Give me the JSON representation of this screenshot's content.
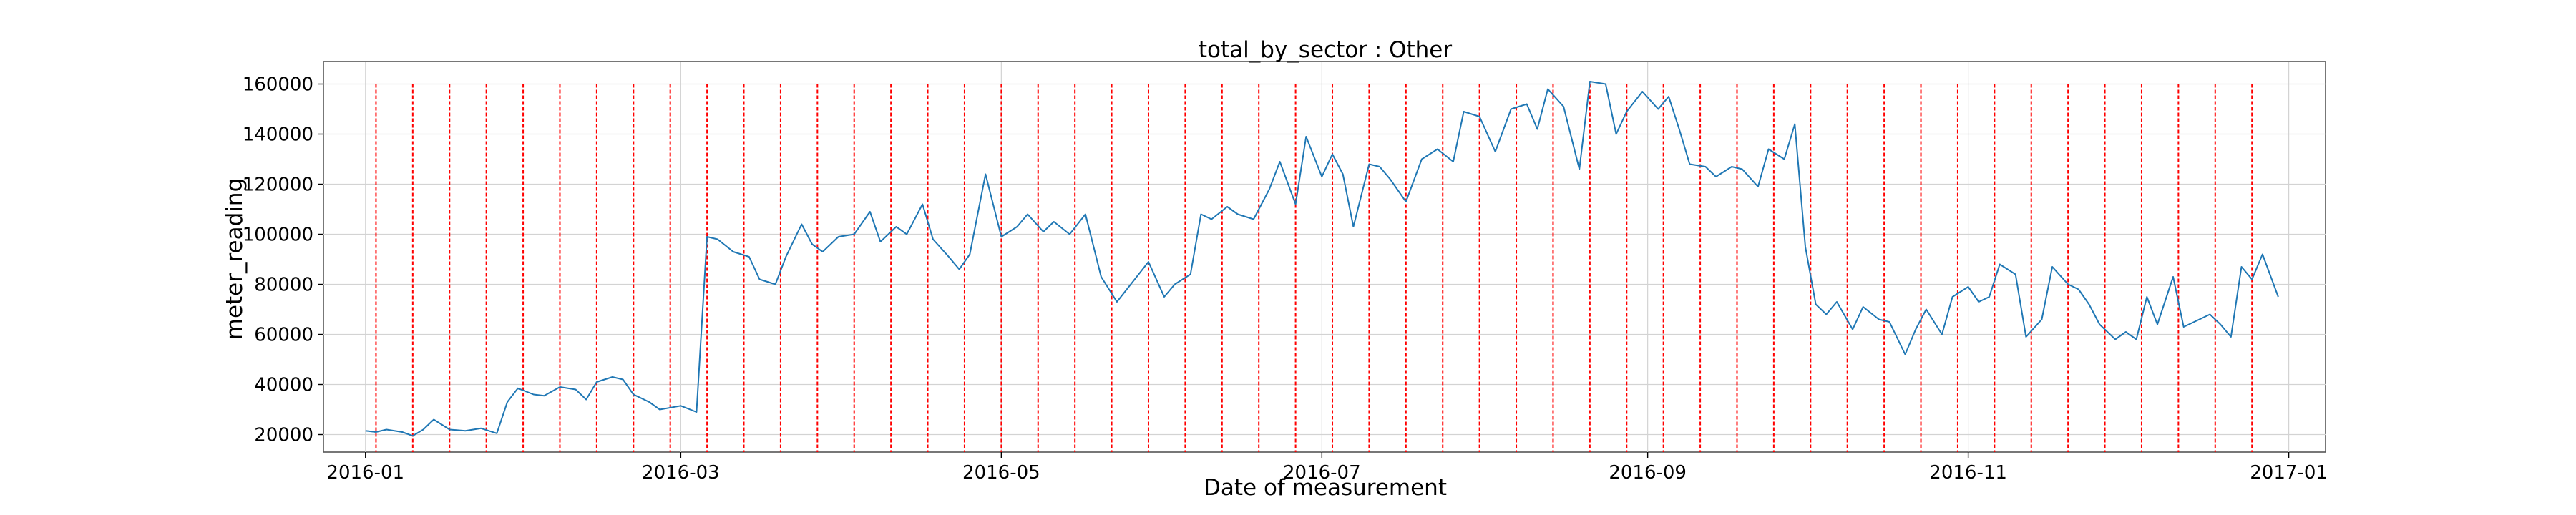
{
  "chart_data": {
    "type": "line",
    "title": "total_by_sector : Other",
    "xlabel": "Date of measurement",
    "ylabel": "meter_reading",
    "x_range": [
      "2015-12-24",
      "2017-01-08"
    ],
    "ylim": [
      13000,
      169000
    ],
    "y_ticks": [
      20000,
      40000,
      60000,
      80000,
      100000,
      120000,
      140000,
      160000
    ],
    "x_ticks": [
      {
        "date": "2016-01-01",
        "label": "2016-01"
      },
      {
        "date": "2016-03-01",
        "label": "2016-03"
      },
      {
        "date": "2016-05-01",
        "label": "2016-05"
      },
      {
        "date": "2016-07-01",
        "label": "2016-07"
      },
      {
        "date": "2016-09-01",
        "label": "2016-09"
      },
      {
        "date": "2016-11-01",
        "label": "2016-11"
      },
      {
        "date": "2017-01-01",
        "label": "2017-01"
      }
    ],
    "grid": true,
    "line_color": "#1f77b4",
    "vline_color": "#ff0000",
    "weekly_markers": {
      "start": "2016-01-03",
      "end": "2016-12-25",
      "step_days": 7,
      "style": "dashed"
    },
    "series": [
      {
        "name": "",
        "points": [
          [
            "2016-01-01",
            21500
          ],
          [
            "2016-01-03",
            21000
          ],
          [
            "2016-01-05",
            22000
          ],
          [
            "2016-01-08",
            21000
          ],
          [
            "2016-01-10",
            19500
          ],
          [
            "2016-01-12",
            22000
          ],
          [
            "2016-01-14",
            26000
          ],
          [
            "2016-01-17",
            22000
          ],
          [
            "2016-01-20",
            21500
          ],
          [
            "2016-01-23",
            22500
          ],
          [
            "2016-01-26",
            20500
          ],
          [
            "2016-01-28",
            33000
          ],
          [
            "2016-01-30",
            38500
          ],
          [
            "2016-02-02",
            36000
          ],
          [
            "2016-02-04",
            35500
          ],
          [
            "2016-02-07",
            39000
          ],
          [
            "2016-02-10",
            38000
          ],
          [
            "2016-02-12",
            34000
          ],
          [
            "2016-02-14",
            41000
          ],
          [
            "2016-02-17",
            43000
          ],
          [
            "2016-02-19",
            42000
          ],
          [
            "2016-02-21",
            36000
          ],
          [
            "2016-02-24",
            33000
          ],
          [
            "2016-02-26",
            30000
          ],
          [
            "2016-03-01",
            31500
          ],
          [
            "2016-03-04",
            29000
          ],
          [
            "2016-03-06",
            99000
          ],
          [
            "2016-03-08",
            98000
          ],
          [
            "2016-03-11",
            93000
          ],
          [
            "2016-03-14",
            91000
          ],
          [
            "2016-03-16",
            82000
          ],
          [
            "2016-03-19",
            80000
          ],
          [
            "2016-03-21",
            91000
          ],
          [
            "2016-03-24",
            104000
          ],
          [
            "2016-03-26",
            96000
          ],
          [
            "2016-03-28",
            93000
          ],
          [
            "2016-03-31",
            99000
          ],
          [
            "2016-04-03",
            100000
          ],
          [
            "2016-04-06",
            109000
          ],
          [
            "2016-04-08",
            97000
          ],
          [
            "2016-04-11",
            103000
          ],
          [
            "2016-04-13",
            100000
          ],
          [
            "2016-04-16",
            112000
          ],
          [
            "2016-04-18",
            98000
          ],
          [
            "2016-04-21",
            91000
          ],
          [
            "2016-04-23",
            86000
          ],
          [
            "2016-04-25",
            92000
          ],
          [
            "2016-04-28",
            124000
          ],
          [
            "2016-05-01",
            99000
          ],
          [
            "2016-05-04",
            103000
          ],
          [
            "2016-05-06",
            108000
          ],
          [
            "2016-05-09",
            101000
          ],
          [
            "2016-05-11",
            105000
          ],
          [
            "2016-05-14",
            100000
          ],
          [
            "2016-05-17",
            108000
          ],
          [
            "2016-05-20",
            83000
          ],
          [
            "2016-05-23",
            73000
          ],
          [
            "2016-05-26",
            81000
          ],
          [
            "2016-05-29",
            89000
          ],
          [
            "2016-06-01",
            75000
          ],
          [
            "2016-06-03",
            80000
          ],
          [
            "2016-06-06",
            84000
          ],
          [
            "2016-06-08",
            108000
          ],
          [
            "2016-06-10",
            106000
          ],
          [
            "2016-06-13",
            111000
          ],
          [
            "2016-06-15",
            108000
          ],
          [
            "2016-06-18",
            106000
          ],
          [
            "2016-06-21",
            118000
          ],
          [
            "2016-06-23",
            129000
          ],
          [
            "2016-06-26",
            112000
          ],
          [
            "2016-06-28",
            139000
          ],
          [
            "2016-07-01",
            123000
          ],
          [
            "2016-07-03",
            132000
          ],
          [
            "2016-07-05",
            124000
          ],
          [
            "2016-07-07",
            103000
          ],
          [
            "2016-07-10",
            128000
          ],
          [
            "2016-07-12",
            127000
          ],
          [
            "2016-07-14",
            122000
          ],
          [
            "2016-07-17",
            113000
          ],
          [
            "2016-07-20",
            130000
          ],
          [
            "2016-07-23",
            134000
          ],
          [
            "2016-07-26",
            129000
          ],
          [
            "2016-07-28",
            149000
          ],
          [
            "2016-07-31",
            147000
          ],
          [
            "2016-08-03",
            133000
          ],
          [
            "2016-08-06",
            150000
          ],
          [
            "2016-08-09",
            152000
          ],
          [
            "2016-08-11",
            142000
          ],
          [
            "2016-08-13",
            158000
          ],
          [
            "2016-08-16",
            151000
          ],
          [
            "2016-08-19",
            126000
          ],
          [
            "2016-08-21",
            161000
          ],
          [
            "2016-08-24",
            160000
          ],
          [
            "2016-08-26",
            140000
          ],
          [
            "2016-08-28",
            149000
          ],
          [
            "2016-08-31",
            157000
          ],
          [
            "2016-09-03",
            150000
          ],
          [
            "2016-09-05",
            155000
          ],
          [
            "2016-09-07",
            142000
          ],
          [
            "2016-09-09",
            128000
          ],
          [
            "2016-09-12",
            127000
          ],
          [
            "2016-09-14",
            123000
          ],
          [
            "2016-09-17",
            127000
          ],
          [
            "2016-09-19",
            126000
          ],
          [
            "2016-09-22",
            119000
          ],
          [
            "2016-09-24",
            134000
          ],
          [
            "2016-09-27",
            130000
          ],
          [
            "2016-09-29",
            144000
          ],
          [
            "2016-10-01",
            95000
          ],
          [
            "2016-10-03",
            72000
          ],
          [
            "2016-10-05",
            68000
          ],
          [
            "2016-10-07",
            73000
          ],
          [
            "2016-10-10",
            62000
          ],
          [
            "2016-10-12",
            71000
          ],
          [
            "2016-10-15",
            66000
          ],
          [
            "2016-10-17",
            65000
          ],
          [
            "2016-10-20",
            52000
          ],
          [
            "2016-10-22",
            62000
          ],
          [
            "2016-10-24",
            70000
          ],
          [
            "2016-10-27",
            60000
          ],
          [
            "2016-10-29",
            75000
          ],
          [
            "2016-11-01",
            79000
          ],
          [
            "2016-11-03",
            73000
          ],
          [
            "2016-11-05",
            75000
          ],
          [
            "2016-11-07",
            88000
          ],
          [
            "2016-11-10",
            84000
          ],
          [
            "2016-11-12",
            59000
          ],
          [
            "2016-11-15",
            66000
          ],
          [
            "2016-11-17",
            87000
          ],
          [
            "2016-11-20",
            80000
          ],
          [
            "2016-11-22",
            78000
          ],
          [
            "2016-11-24",
            72000
          ],
          [
            "2016-11-26",
            64000
          ],
          [
            "2016-11-29",
            58000
          ],
          [
            "2016-12-01",
            61000
          ],
          [
            "2016-12-03",
            58000
          ],
          [
            "2016-12-05",
            75000
          ],
          [
            "2016-12-07",
            64000
          ],
          [
            "2016-12-10",
            83000
          ],
          [
            "2016-12-12",
            63000
          ],
          [
            "2016-12-14",
            65000
          ],
          [
            "2016-12-17",
            68000
          ],
          [
            "2016-12-19",
            64000
          ],
          [
            "2016-12-21",
            59000
          ],
          [
            "2016-12-23",
            87000
          ],
          [
            "2016-12-25",
            82000
          ],
          [
            "2016-12-27",
            92000
          ],
          [
            "2016-12-30",
            75000
          ]
        ]
      }
    ]
  }
}
